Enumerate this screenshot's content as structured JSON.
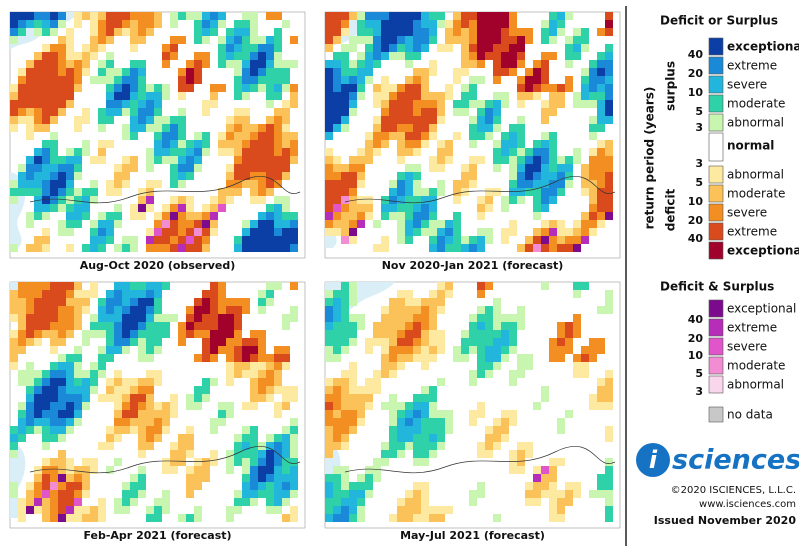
{
  "panels": [
    {
      "caption": "Aug-Oct 2020 (observed)"
    },
    {
      "caption": "Nov 2020-Jan 2021 (forecast)"
    },
    {
      "caption": "Feb-Apr 2021 (forecast)"
    },
    {
      "caption": "May-Jul 2021 (forecast)"
    }
  ],
  "legend": {
    "title": "Deficit or Surplus",
    "axis_label": "return period (years)",
    "surplus_label": "surplus",
    "deficit_label": "deficit",
    "surplus": [
      {
        "label": "exceptional",
        "color": "#0b3fa6"
      },
      {
        "label": "extreme",
        "color": "#1a8ad8"
      },
      {
        "label": "severe",
        "color": "#22b6dc"
      },
      {
        "label": "moderate",
        "color": "#2fd2a8"
      },
      {
        "label": "abnormal",
        "color": "#c8f5b0"
      }
    ],
    "normal": {
      "label": "normal",
      "color": "#ffffff"
    },
    "deficit": [
      {
        "label": "abnormal",
        "color": "#fdeaa0"
      },
      {
        "label": "moderate",
        "color": "#fbc25a"
      },
      {
        "label": "severe",
        "color": "#f28e22"
      },
      {
        "label": "extreme",
        "color": "#d94a1c"
      },
      {
        "label": "exceptional",
        "color": "#a0022c"
      }
    ],
    "surplus_numbers": [
      40,
      20,
      10,
      5,
      3
    ],
    "deficit_numbers": [
      3,
      5,
      10,
      20,
      40
    ],
    "both_title": "Deficit & Surplus",
    "both": [
      {
        "label": "exceptional",
        "color": "#7b0a8c"
      },
      {
        "label": "extreme",
        "color": "#b52db9"
      },
      {
        "label": "severe",
        "color": "#e055c9"
      },
      {
        "label": "moderate",
        "color": "#f28dd4"
      },
      {
        "label": "abnormal",
        "color": "#fad6ed"
      }
    ],
    "both_numbers": [
      40,
      20,
      10,
      5,
      3
    ],
    "no_data": {
      "label": "no data",
      "color": "#c8c8c8"
    }
  },
  "logo": {
    "icon": "i",
    "text": "sciences"
  },
  "copyright": "©2020 ISCIENCES, L.L.C.",
  "website": "www.isciences.com",
  "issued": "Issued November 2020"
}
